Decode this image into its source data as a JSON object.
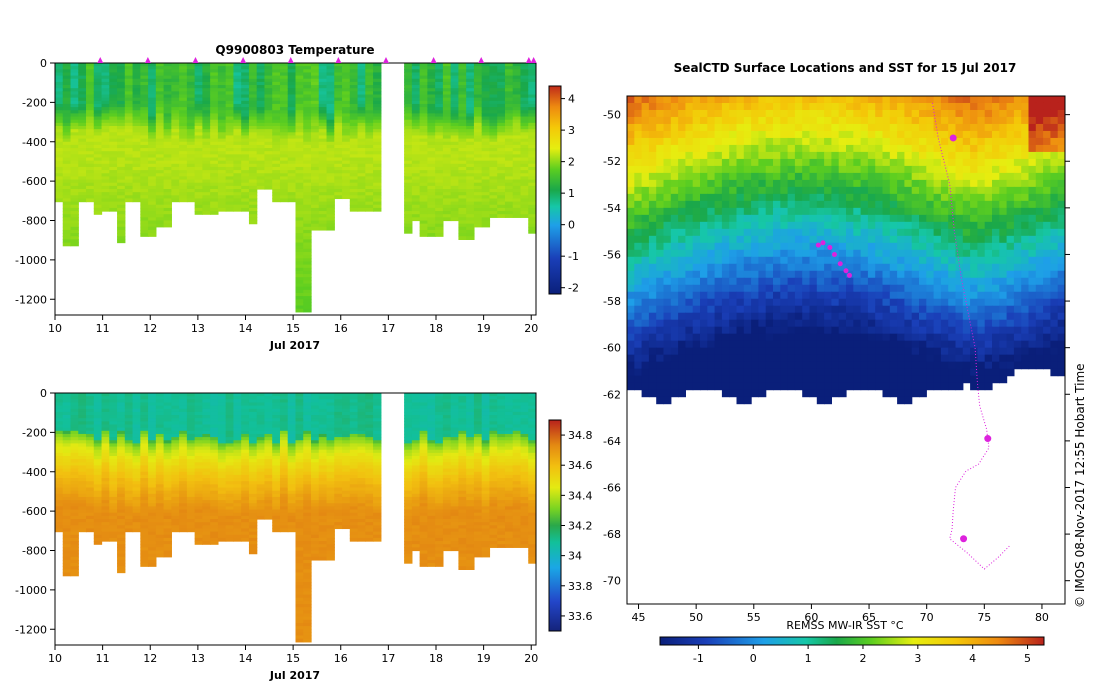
{
  "chart_data": [
    {
      "type": "heatmap",
      "title": "Q9900803  Temperature",
      "xlabel": "Jul 2017",
      "x_ticks": [
        10,
        11,
        12,
        13,
        14,
        15,
        16,
        17,
        18,
        19,
        20
      ],
      "xlim": [
        10,
        20.1
      ],
      "y_ticks": [
        0,
        -200,
        -400,
        -600,
        -800,
        -1000,
        -1200
      ],
      "ylim": [
        -1280,
        0
      ],
      "colorbar": {
        "ticks": [
          4,
          3,
          2,
          1,
          0,
          -1,
          -2
        ],
        "range": [
          -2.2,
          4.4
        ]
      },
      "profile_markers": [
        10.95,
        11.95,
        12.95,
        13.95,
        14.95,
        15.95,
        16.95,
        17.95,
        18.95,
        19.95,
        20.05
      ],
      "gaps": [
        [
          16.78,
          17.3
        ]
      ],
      "profile_depths": [
        [
          10.0,
          -690
        ],
        [
          10.2,
          -920
        ],
        [
          10.55,
          -690
        ],
        [
          10.75,
          -760
        ],
        [
          11.0,
          -750
        ],
        [
          11.3,
          -910
        ],
        [
          11.5,
          -690
        ],
        [
          11.8,
          -880
        ],
        [
          12.1,
          -820
        ],
        [
          12.5,
          -700
        ],
        [
          13.0,
          -760
        ],
        [
          13.5,
          -750
        ],
        [
          14.0,
          -810
        ],
        [
          14.3,
          -640
        ],
        [
          14.6,
          -700
        ],
        [
          15.0,
          -1260
        ],
        [
          15.35,
          -840
        ],
        [
          15.8,
          -680
        ],
        [
          16.2,
          -740
        ],
        [
          16.5,
          -740
        ],
        [
          17.3,
          -860
        ],
        [
          17.5,
          -790
        ],
        [
          17.7,
          -870
        ],
        [
          18.1,
          -800
        ],
        [
          18.4,
          -890
        ],
        [
          18.8,
          -830
        ],
        [
          19.2,
          -780
        ],
        [
          19.6,
          -780
        ],
        [
          20.0,
          -850
        ]
      ],
      "layers": {
        "mixed_temp": 0.8,
        "thermocline_depth": -230,
        "deep_temp": 1.9
      }
    },
    {
      "type": "heatmap",
      "title": "",
      "xlabel": "Jul 2017",
      "x_ticks": [
        10,
        11,
        12,
        13,
        14,
        15,
        16,
        17,
        18,
        19,
        20
      ],
      "xlim": [
        10,
        20.1
      ],
      "y_ticks": [
        0,
        -200,
        -400,
        -600,
        -800,
        -1000,
        -1200
      ],
      "ylim": [
        -1280,
        0
      ],
      "colorbar": {
        "ticks": [
          34.8,
          34.6,
          34.4,
          34.2,
          34,
          33.8,
          33.6
        ],
        "range": [
          33.5,
          34.9
        ]
      },
      "gaps": [
        [
          16.78,
          17.3
        ]
      ],
      "layers": {
        "surface_salinity": 34.1,
        "halocline_depth": -220,
        "deep_salinity": 34.72
      }
    },
    {
      "type": "heatmap",
      "title": "SealCTD Surface Locations and SST for 15 Jul 2017",
      "x_ticks": [
        45,
        50,
        55,
        60,
        65,
        70,
        75,
        80
      ],
      "xlim": [
        44,
        82
      ],
      "y_ticks": [
        -50,
        -52,
        -54,
        -56,
        -58,
        -60,
        -62,
        -64,
        -66,
        -68,
        -70
      ],
      "ylim": [
        -71,
        -49.2
      ],
      "colorbar_label": "REMSS MW-IR SST °C",
      "colorbar": {
        "ticks": [
          -1,
          0,
          1,
          2,
          3,
          4,
          5
        ],
        "range": [
          -1.7,
          5.3
        ]
      },
      "ice_edge_lat": -62,
      "track": [
        [
          70.5,
          -49.5
        ],
        [
          71.0,
          -51.0
        ],
        [
          72.0,
          -53.0
        ],
        [
          72.4,
          -55.0
        ],
        [
          73.0,
          -57.0
        ],
        [
          73.6,
          -58.5
        ],
        [
          74.2,
          -60.0
        ],
        [
          74.4,
          -61.5
        ],
        [
          74.6,
          -62.5
        ],
        [
          75.2,
          -63.5
        ],
        [
          75.4,
          -64.3
        ],
        [
          74.5,
          -65.0
        ],
        [
          73.4,
          -65.3
        ],
        [
          72.5,
          -66.0
        ],
        [
          72.3,
          -67.0
        ],
        [
          72.2,
          -67.8
        ],
        [
          72.0,
          -68.2
        ],
        [
          73.5,
          -68.8
        ],
        [
          75.0,
          -69.5
        ],
        [
          76.2,
          -69.0
        ],
        [
          77.2,
          -68.5
        ]
      ],
      "animals": [
        [
          60.6,
          -55.6
        ],
        [
          61.0,
          -55.5
        ],
        [
          61.6,
          -55.7
        ],
        [
          62.0,
          -56.0
        ],
        [
          62.5,
          -56.4
        ],
        [
          63.0,
          -56.7
        ],
        [
          63.3,
          -56.9
        ]
      ],
      "seal_locations": [
        [
          73.2,
          -68.2
        ],
        [
          75.3,
          -63.9
        ],
        [
          72.3,
          -51.0
        ]
      ]
    }
  ],
  "watermark": "© IMOS 08-Nov-2017 12:55 Hobart Time",
  "colors": {
    "marker": "#dd22dd",
    "background": "#ffffff"
  }
}
